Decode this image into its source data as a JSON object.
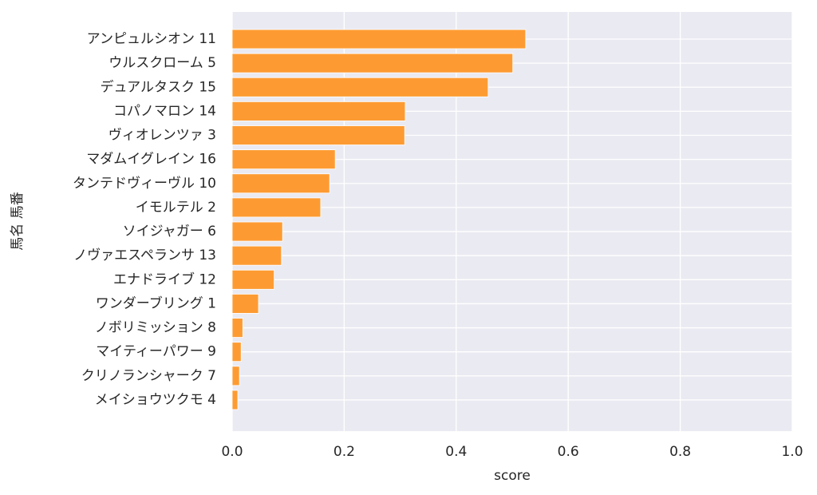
{
  "chart_data": {
    "type": "barh",
    "categories": [
      "アンピュルシオン 11",
      "ウルスクローム 5",
      "デュアルタスク 15",
      "コパノマロン 14",
      "ヴィオレンツァ 3",
      "マダムイグレイン 16",
      "タンテドヴィーヴル 10",
      "イモルテル 2",
      "ソイジャガー 6",
      "ノヴァエスペランサ 13",
      "エナドライブ 12",
      "ワンダーブリング 1",
      "ノボリミッション 8",
      "マイティーパワー 9",
      "クリノランシャーク 7",
      "メイショウツクモ 4"
    ],
    "values": [
      0.524,
      0.501,
      0.457,
      0.309,
      0.308,
      0.184,
      0.174,
      0.158,
      0.09,
      0.088,
      0.075,
      0.047,
      0.019,
      0.016,
      0.013,
      0.01
    ],
    "color": "#fd9b32",
    "xlabel": "score",
    "ylabel": "馬名 馬番",
    "xlim": [
      0,
      1
    ],
    "xticks": [
      {
        "value": 0,
        "label": "0.0"
      },
      {
        "value": 0.2,
        "label": "0.2"
      },
      {
        "value": 0.4,
        "label": "0.4"
      },
      {
        "value": 0.6,
        "label": "0.6"
      },
      {
        "value": 0.8,
        "label": "0.8"
      },
      {
        "value": 1,
        "label": "1.0"
      }
    ],
    "grid": true
  }
}
